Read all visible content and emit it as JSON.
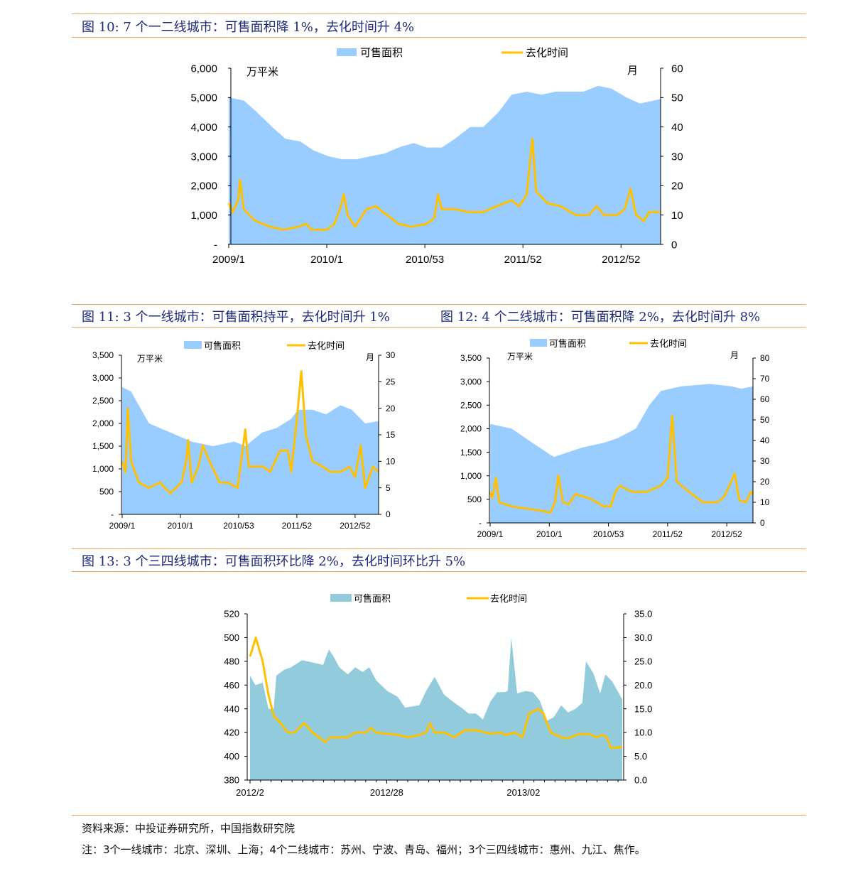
{
  "figures": {
    "fig10_title": "图 10: 7 个一二线城市：可售面积降 1%，去化时间升 4%",
    "fig11_title": "图 11: 3 个一线城市：可售面积持平，去化时间升 1%",
    "fig12_title": "图 12: 4 个二线城市：可售面积降 2%，去化时间升 8%",
    "fig13_title": "图 13: 3 个三四线城市：可售面积环比降 2%，去化时间环比升 5%"
  },
  "footer": {
    "source": "资料来源：中投证券研究所，中国指数研究院",
    "note": "注：3个一线城市：北京、深圳、上海；4个二线城市：苏州、宁波、青岛、福州；3个三四线城市：惠州、九江、焦作。"
  },
  "colors": {
    "area": "#99CCFF",
    "area13": "#92CCDC",
    "line": "#FFC000",
    "title": "#1F2A7A",
    "rule": "#F7A35C"
  },
  "chart_data": [
    {
      "id": "fig10",
      "type": "area+line",
      "legend": [
        "可售面积",
        "去化时间"
      ],
      "left_unit": "万平米",
      "right_unit": "月",
      "x_unit": "weeks since 2009/1",
      "xlim": [
        0,
        229
      ],
      "xticks": [
        {
          "x": 0,
          "label": "2009/1"
        },
        {
          "x": 52,
          "label": "2010/1"
        },
        {
          "x": 104,
          "label": "2010/53"
        },
        {
          "x": 156,
          "label": "2011/52"
        },
        {
          "x": 208,
          "label": "2012/52"
        }
      ],
      "ylim_left": [
        0,
        6000
      ],
      "yticks_left": [
        "-",
        "1,000",
        "2,000",
        "3,000",
        "4,000",
        "5,000",
        "6,000"
      ],
      "ylim_right": [
        0,
        60
      ],
      "yticks_right": [
        "0",
        "10",
        "20",
        "30",
        "40",
        "50",
        "60"
      ],
      "area": [
        [
          0,
          5000
        ],
        [
          8,
          4900
        ],
        [
          15,
          4500
        ],
        [
          23,
          4000
        ],
        [
          30,
          3600
        ],
        [
          38,
          3500
        ],
        [
          45,
          3200
        ],
        [
          53,
          3000
        ],
        [
          60,
          2900
        ],
        [
          68,
          2900
        ],
        [
          75,
          3000
        ],
        [
          83,
          3100
        ],
        [
          90,
          3300
        ],
        [
          98,
          3450
        ],
        [
          105,
          3300
        ],
        [
          113,
          3300
        ],
        [
          120,
          3600
        ],
        [
          128,
          4000
        ],
        [
          135,
          4000
        ],
        [
          143,
          4500
        ],
        [
          150,
          5100
        ],
        [
          158,
          5200
        ],
        [
          166,
          5100
        ],
        [
          173,
          5200
        ],
        [
          181,
          5200
        ],
        [
          188,
          5200
        ],
        [
          196,
          5400
        ],
        [
          203,
          5300
        ],
        [
          211,
          5000
        ],
        [
          218,
          4800
        ],
        [
          222,
          4850
        ],
        [
          229,
          4950
        ]
      ],
      "line": [
        [
          0,
          14
        ],
        [
          2,
          11
        ],
        [
          5,
          15
        ],
        [
          6,
          22
        ],
        [
          8,
          12
        ],
        [
          14,
          8
        ],
        [
          22,
          6
        ],
        [
          29,
          5
        ],
        [
          37,
          6
        ],
        [
          41,
          7
        ],
        [
          44,
          5
        ],
        [
          52,
          5
        ],
        [
          56,
          7
        ],
        [
          59,
          12
        ],
        [
          61,
          17
        ],
        [
          63,
          10
        ],
        [
          67,
          6
        ],
        [
          73,
          12
        ],
        [
          78,
          13
        ],
        [
          86,
          9
        ],
        [
          90,
          7
        ],
        [
          97,
          6
        ],
        [
          105,
          7
        ],
        [
          109,
          9
        ],
        [
          111,
          17
        ],
        [
          113,
          12
        ],
        [
          120,
          12
        ],
        [
          127,
          11
        ],
        [
          135,
          11
        ],
        [
          142,
          13
        ],
        [
          150,
          15
        ],
        [
          154,
          13
        ],
        [
          158,
          17
        ],
        [
          161,
          36
        ],
        [
          163,
          18
        ],
        [
          169,
          14
        ],
        [
          176,
          13
        ],
        [
          184,
          10
        ],
        [
          191,
          10
        ],
        [
          195,
          13
        ],
        [
          199,
          10
        ],
        [
          206,
          10
        ],
        [
          210,
          12
        ],
        [
          213,
          19
        ],
        [
          216,
          10
        ],
        [
          220,
          8
        ],
        [
          223,
          11
        ],
        [
          229,
          11
        ]
      ]
    },
    {
      "id": "fig11",
      "type": "area+line",
      "legend": [
        "可售面积",
        "去化时间"
      ],
      "left_unit": "万平米",
      "right_unit": "月",
      "xlim": [
        0,
        229
      ],
      "xticks": [
        {
          "x": 0,
          "label": "2009/1"
        },
        {
          "x": 52,
          "label": "2010/1"
        },
        {
          "x": 104,
          "label": "2010/53"
        },
        {
          "x": 156,
          "label": "2011/52"
        },
        {
          "x": 208,
          "label": "2012/52"
        }
      ],
      "ylim_left": [
        0,
        3500
      ],
      "yticks_left": [
        "-",
        "500",
        "1,000",
        "1,500",
        "2,000",
        "2,500",
        "3,000",
        "3,500"
      ],
      "ylim_right": [
        0,
        30
      ],
      "yticks_right": [
        "0",
        "5",
        "10",
        "15",
        "20",
        "25",
        "30"
      ],
      "area": [
        [
          0,
          2800
        ],
        [
          8,
          2700
        ],
        [
          24,
          2000
        ],
        [
          43,
          1800
        ],
        [
          62,
          1600
        ],
        [
          81,
          1500
        ],
        [
          100,
          1600
        ],
        [
          110,
          1500
        ],
        [
          125,
          1800
        ],
        [
          138,
          1900
        ],
        [
          151,
          2100
        ],
        [
          157,
          2300
        ],
        [
          170,
          2300
        ],
        [
          182,
          2200
        ],
        [
          195,
          2400
        ],
        [
          205,
          2300
        ],
        [
          217,
          2000
        ],
        [
          229,
          2050
        ]
      ],
      "line": [
        [
          0,
          10
        ],
        [
          3,
          8
        ],
        [
          5,
          20
        ],
        [
          8,
          10
        ],
        [
          15,
          6
        ],
        [
          24,
          5
        ],
        [
          34,
          6
        ],
        [
          38,
          5
        ],
        [
          43,
          4
        ],
        [
          53,
          6
        ],
        [
          57,
          10
        ],
        [
          59,
          14
        ],
        [
          62,
          6
        ],
        [
          68,
          9
        ],
        [
          72,
          13
        ],
        [
          78,
          10
        ],
        [
          87,
          6
        ],
        [
          94,
          6
        ],
        [
          103,
          5
        ],
        [
          110,
          16
        ],
        [
          113,
          9
        ],
        [
          126,
          9
        ],
        [
          132,
          8
        ],
        [
          141,
          12
        ],
        [
          148,
          12
        ],
        [
          151,
          8
        ],
        [
          156,
          18
        ],
        [
          160,
          27
        ],
        [
          164,
          15
        ],
        [
          170,
          10
        ],
        [
          179,
          9
        ],
        [
          186,
          8
        ],
        [
          195,
          8
        ],
        [
          203,
          9
        ],
        [
          208,
          7
        ],
        [
          213,
          13
        ],
        [
          217,
          5
        ],
        [
          224,
          9
        ],
        [
          229,
          8
        ]
      ]
    },
    {
      "id": "fig12",
      "type": "area+line",
      "legend": [
        "可售面积",
        "去化时间"
      ],
      "left_unit": "万平米",
      "right_unit": "月",
      "xlim": [
        0,
        231
      ],
      "xticks": [
        {
          "x": 0,
          "label": "2009/1"
        },
        {
          "x": 52,
          "label": "2010/1"
        },
        {
          "x": 104,
          "label": "2010/53"
        },
        {
          "x": 156,
          "label": "2011/52"
        },
        {
          "x": 208,
          "label": "2012/52"
        }
      ],
      "ylim_left": [
        0,
        3500
      ],
      "yticks_left": [
        "-",
        "500",
        "1,000",
        "1,500",
        "2,000",
        "2,500",
        "3,000",
        "3,500"
      ],
      "ylim_right": [
        0,
        80
      ],
      "yticks_right": [
        "0",
        "10",
        "20",
        "30",
        "40",
        "50",
        "60",
        "70",
        "80"
      ],
      "area": [
        [
          0,
          2100
        ],
        [
          19,
          2000
        ],
        [
          37,
          1700
        ],
        [
          56,
          1400
        ],
        [
          81,
          1600
        ],
        [
          100,
          1700
        ],
        [
          112,
          1800
        ],
        [
          128,
          2000
        ],
        [
          140,
          2500
        ],
        [
          150,
          2800
        ],
        [
          168,
          2900
        ],
        [
          193,
          2950
        ],
        [
          212,
          2900
        ],
        [
          221,
          2850
        ],
        [
          231,
          2900
        ]
      ],
      "line": [
        [
          0,
          15
        ],
        [
          2,
          12
        ],
        [
          5,
          22
        ],
        [
          8,
          10
        ],
        [
          19,
          8
        ],
        [
          31,
          7
        ],
        [
          44,
          6
        ],
        [
          53,
          5
        ],
        [
          57,
          10
        ],
        [
          60,
          23
        ],
        [
          64,
          10
        ],
        [
          69,
          9
        ],
        [
          75,
          14
        ],
        [
          87,
          12
        ],
        [
          100,
          8
        ],
        [
          106,
          8
        ],
        [
          110,
          15
        ],
        [
          114,
          18
        ],
        [
          125,
          15
        ],
        [
          137,
          15
        ],
        [
          150,
          18
        ],
        [
          156,
          22
        ],
        [
          160,
          52
        ],
        [
          164,
          20
        ],
        [
          175,
          15
        ],
        [
          187,
          10
        ],
        [
          200,
          10
        ],
        [
          206,
          13
        ],
        [
          215,
          24
        ],
        [
          219,
          11
        ],
        [
          225,
          10
        ],
        [
          229,
          15
        ],
        [
          231,
          14
        ]
      ]
    },
    {
      "id": "fig13",
      "type": "area+line",
      "legend": [
        "可售面积",
        "去化时间"
      ],
      "x_unit": "weeks since 2012/2",
      "xlim": [
        0,
        70.8
      ],
      "xticks": [
        {
          "x": 0,
          "label": "2012/2"
        },
        {
          "x": 26,
          "label": "2012/28"
        },
        {
          "x": 52,
          "label": "2013/02"
        }
      ],
      "ylim_left": [
        380,
        520
      ],
      "yticks_left": [
        "380",
        "400",
        "420",
        "440",
        "460",
        "480",
        "500",
        "520"
      ],
      "ylim_right": [
        0,
        35
      ],
      "yticks_right": [
        "0.0",
        "5.0",
        "10.0",
        "15.0",
        "20.0",
        "25.0",
        "30.0",
        "35.0"
      ],
      "area": [
        [
          0,
          468
        ],
        [
          1,
          460
        ],
        [
          2.4,
          462
        ],
        [
          3.5,
          440
        ],
        [
          4.5,
          440
        ],
        [
          5,
          468
        ],
        [
          6.5,
          473
        ],
        [
          7.8,
          475
        ],
        [
          9.9,
          481
        ],
        [
          11.9,
          479
        ],
        [
          13.9,
          477
        ],
        [
          15,
          490
        ],
        [
          15.9,
          484
        ],
        [
          17,
          475
        ],
        [
          18.6,
          469
        ],
        [
          20,
          475
        ],
        [
          21.4,
          471
        ],
        [
          22.7,
          475
        ],
        [
          24,
          464
        ],
        [
          26.1,
          455
        ],
        [
          28.1,
          450
        ],
        [
          29.5,
          441
        ],
        [
          32.2,
          443
        ],
        [
          33.5,
          455
        ],
        [
          35.1,
          467
        ],
        [
          36.9,
          452
        ],
        [
          38.9,
          445
        ],
        [
          40.2,
          441
        ],
        [
          41.6,
          436
        ],
        [
          43,
          436
        ],
        [
          44.3,
          431
        ],
        [
          45.7,
          446
        ],
        [
          47,
          454
        ],
        [
          48.4,
          454
        ],
        [
          49,
          455
        ],
        [
          49.7,
          500
        ],
        [
          50.8,
          453
        ],
        [
          52.4,
          455
        ],
        [
          53.8,
          454
        ],
        [
          55.1,
          447
        ],
        [
          56.5,
          430
        ],
        [
          57.8,
          433
        ],
        [
          59.2,
          443
        ],
        [
          60.5,
          437
        ],
        [
          61.9,
          440
        ],
        [
          63.2,
          445
        ],
        [
          63.9,
          480
        ],
        [
          65.3,
          470
        ],
        [
          66.6,
          453
        ],
        [
          67.6,
          469
        ],
        [
          68.9,
          463
        ],
        [
          70.8,
          448
        ]
      ],
      "line": [
        [
          0,
          26
        ],
        [
          1.1,
          30
        ],
        [
          2.4,
          25
        ],
        [
          3.5,
          18
        ],
        [
          4.5,
          13.5
        ],
        [
          5.8,
          12
        ],
        [
          7.2,
          10
        ],
        [
          8.5,
          10
        ],
        [
          10.3,
          12
        ],
        [
          11.9,
          10
        ],
        [
          14.3,
          8
        ],
        [
          15.3,
          9
        ],
        [
          18.6,
          9
        ],
        [
          20,
          10
        ],
        [
          22,
          10
        ],
        [
          23,
          11
        ],
        [
          24,
          10
        ],
        [
          28.1,
          9.5
        ],
        [
          30.1,
          9
        ],
        [
          32.2,
          9.5
        ],
        [
          33.5,
          10
        ],
        [
          34.2,
          12
        ],
        [
          35.1,
          10
        ],
        [
          36.9,
          10
        ],
        [
          38.9,
          9
        ],
        [
          40.9,
          10.5
        ],
        [
          43,
          10.5
        ],
        [
          45.7,
          9.8
        ],
        [
          47.7,
          10
        ],
        [
          48.6,
          9.5
        ],
        [
          50.4,
          10
        ],
        [
          51.8,
          9
        ],
        [
          53.1,
          14
        ],
        [
          54.9,
          15
        ],
        [
          55.8,
          14
        ],
        [
          57.2,
          10
        ],
        [
          59.2,
          9
        ],
        [
          60.5,
          8.8
        ],
        [
          62.6,
          9.7
        ],
        [
          64.6,
          9.7
        ],
        [
          65.9,
          9
        ],
        [
          67,
          9.5
        ],
        [
          67.9,
          9
        ],
        [
          68.6,
          6.8
        ],
        [
          70,
          6.8
        ],
        [
          70.8,
          7
        ]
      ]
    }
  ]
}
